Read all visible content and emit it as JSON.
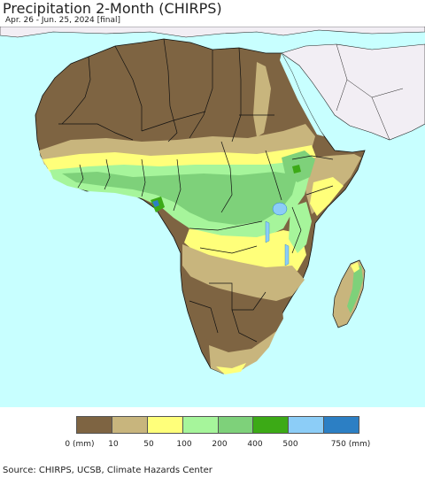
{
  "title": "Precipitation 2-Month (CHIRPS)",
  "subtitle": "Apr. 26 - Jun. 25, 2024 [final]",
  "legend": {
    "colors": [
      "#7e6442",
      "#c8b57d",
      "#ffff7a",
      "#a6f59b",
      "#7ed17a",
      "#3caa16",
      "#8ccdf7",
      "#2c7fc4"
    ],
    "labels": [
      "0 (mm)",
      "10",
      "50",
      "100",
      "200",
      "400",
      "500",
      "750 (mm)"
    ]
  },
  "source": "Source: CHIRPS, UCSB, Climate Hazards Center",
  "colors": {
    "ocean": "#c8ffff",
    "no_data_land": "#f2eef4",
    "boundary": "#000000"
  }
}
